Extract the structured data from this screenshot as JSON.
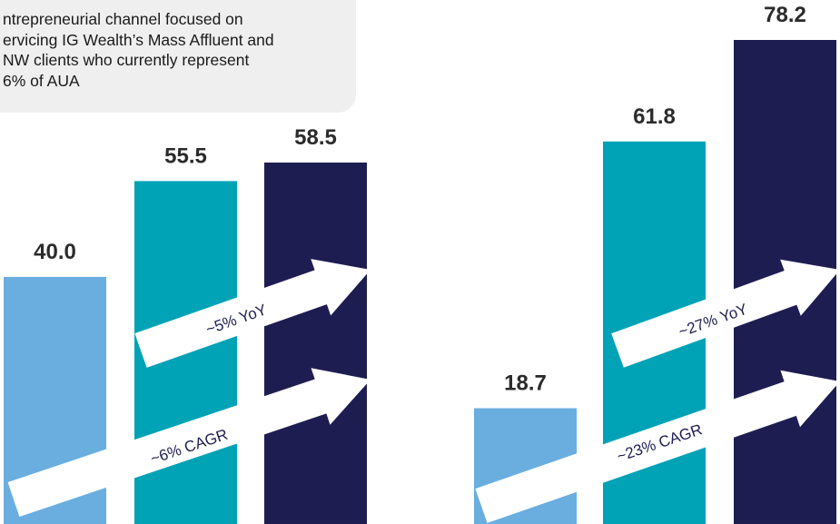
{
  "note": {
    "text": "ntrepreneurial channel focused on\nervicing IG Wealth’s Mass Affluent and\nNW clients who currently represent\n6% of AUA"
  },
  "colors": {
    "bar_light": "#6aaee0",
    "bar_teal": "#00a2b6",
    "bar_navy": "#1e1d52",
    "arrow": "#ffffff",
    "note_bg": "#efefef"
  },
  "chart_data": [
    {
      "type": "bar",
      "values": [
        40.0,
        55.5,
        58.5
      ],
      "data_labels": [
        "40.0",
        "55.5",
        "58.5"
      ],
      "annotations": [
        "~5% YoY",
        "~6% CAGR"
      ]
    },
    {
      "type": "bar",
      "values": [
        18.7,
        61.8,
        78.2
      ],
      "data_labels": [
        "18.7",
        "61.8",
        "78.2"
      ],
      "annotations": [
        "~27% YoY",
        "~23% CAGR"
      ]
    }
  ]
}
